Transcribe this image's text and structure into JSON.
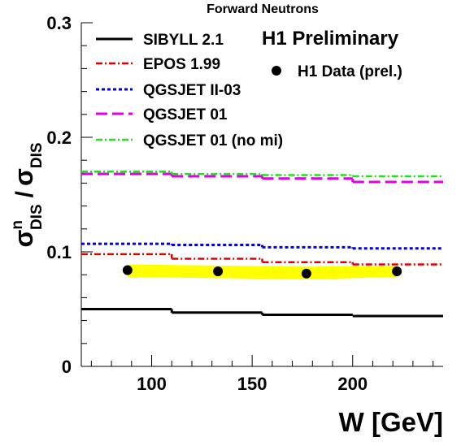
{
  "chart_data": {
    "type": "line",
    "title": "Forward Neutrons",
    "xlabel": "W [GeV]",
    "ylabel": "σ^n_DIS / σ_DIS",
    "ylabel_parts": {
      "num_sym": "σ",
      "num_sup": "n",
      "num_sub": "DIS",
      "slash": "/",
      "den_sym": "σ",
      "den_sub": "DIS"
    },
    "xlim": [
      65,
      245
    ],
    "ylim": [
      0,
      0.3
    ],
    "xticks": [
      100,
      150,
      200
    ],
    "xtick_labels": [
      "100",
      "150",
      "200"
    ],
    "yticks": [
      0,
      0.1,
      0.2,
      0.3
    ],
    "ytick_labels": [
      "0",
      "0.1",
      "0.2",
      "0.3"
    ],
    "preliminary_label": "H1 Preliminary",
    "bin_edges": [
      65,
      110,
      155,
      200,
      245
    ],
    "series": [
      {
        "name": "SIBYLL 2.1",
        "color": "#000000",
        "style": "solid",
        "values": [
          0.05,
          0.047,
          0.045,
          0.044
        ]
      },
      {
        "name": "EPOS 1.99",
        "color": "#e00000",
        "style": "dashdot",
        "values": [
          0.098,
          0.094,
          0.091,
          0.089
        ]
      },
      {
        "name": "QGSJET II-03",
        "color": "#0000dd",
        "style": "dotted",
        "values": [
          0.107,
          0.106,
          0.104,
          0.103
        ]
      },
      {
        "name": "QGSJET 01",
        "color": "#e000e0",
        "style": "dashed",
        "values": [
          0.168,
          0.166,
          0.164,
          0.161
        ]
      },
      {
        "name": "QGSJET 01 (no mi)",
        "color": "#22dd22",
        "style": "dashdot",
        "values": [
          0.17,
          0.168,
          0.167,
          0.166
        ]
      }
    ],
    "data": {
      "name": "H1 Data (prel.)",
      "x": [
        88,
        133,
        177,
        222
      ],
      "y": [
        0.084,
        0.083,
        0.081,
        0.083
      ],
      "band_low": [
        0.078,
        0.077,
        0.076,
        0.078
      ],
      "band_high": [
        0.089,
        0.088,
        0.087,
        0.088
      ],
      "band_color": "#ffff00",
      "marker_color": "#000000"
    }
  }
}
